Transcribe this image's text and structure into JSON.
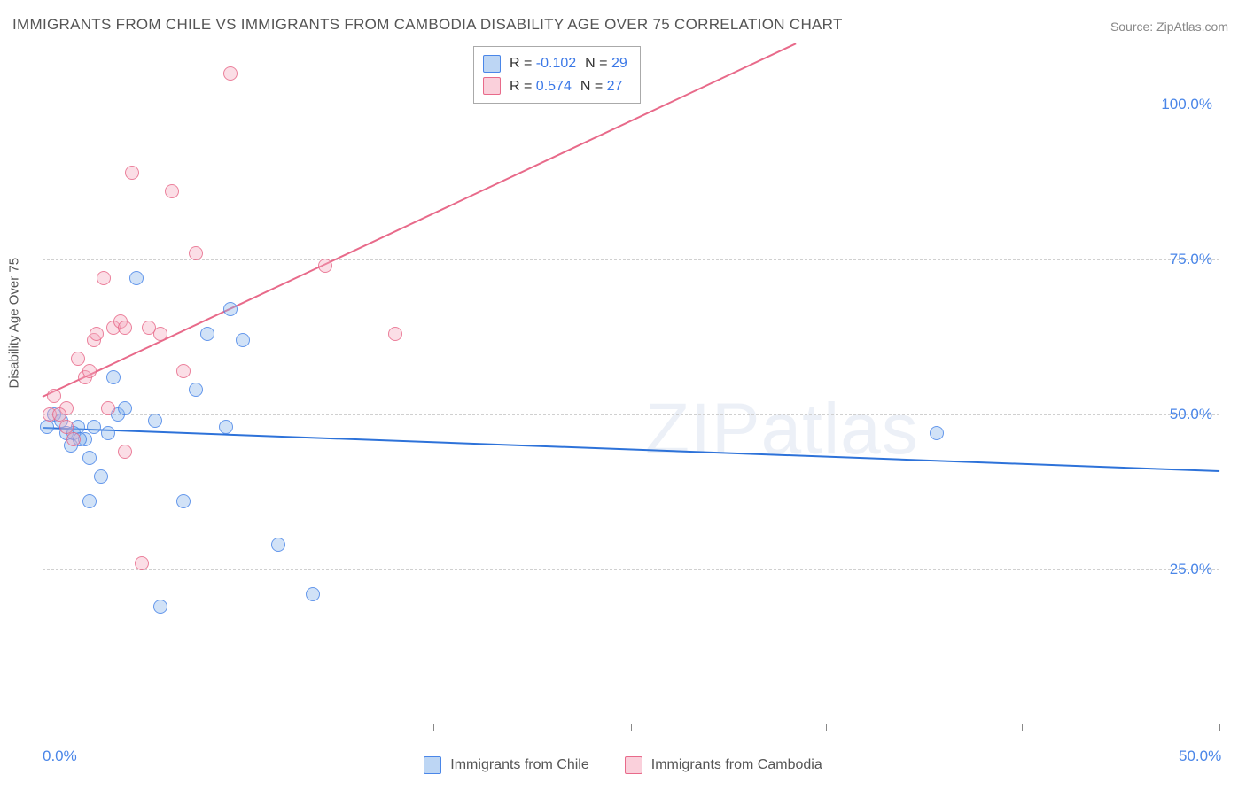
{
  "title": "IMMIGRANTS FROM CHILE VS IMMIGRANTS FROM CAMBODIA DISABILITY AGE OVER 75 CORRELATION CHART",
  "source": "Source: ZipAtlas.com",
  "ylabel": "Disability Age Over 75",
  "watermark": {
    "bold": "ZIP",
    "light": "atlas"
  },
  "legend_top": {
    "rows": [
      {
        "swatch": "blue",
        "r_label": "R = ",
        "r_value": "-0.102",
        "n_label": "N = ",
        "n_value": "29"
      },
      {
        "swatch": "pink",
        "r_label": "R = ",
        "r_value": "0.574",
        "n_label": "N = ",
        "n_value": "27"
      }
    ]
  },
  "legend_bottom": {
    "items": [
      {
        "swatch": "blue",
        "label": "Immigrants from Chile"
      },
      {
        "swatch": "pink",
        "label": "Immigrants from Cambodia"
      }
    ]
  },
  "chart": {
    "type": "scatter",
    "xlim": [
      0,
      50
    ],
    "ylim": [
      0,
      110
    ],
    "y_gridlines": [
      25,
      50,
      75,
      100
    ],
    "ytick_labels": [
      "25.0%",
      "50.0%",
      "75.0%",
      "100.0%"
    ],
    "xtick_positions": [
      0,
      8.3,
      16.6,
      25,
      33.3,
      41.6,
      50
    ],
    "xtick_labels": {
      "0": "0.0%",
      "50": "50.0%"
    },
    "background_color": "#ffffff",
    "grid_color": "#d0d0d0",
    "axis_color": "#888888",
    "series": [
      {
        "name": "Immigrants from Chile",
        "color_fill": "rgba(135,180,235,0.45)",
        "color_stroke": "#4a86e8",
        "marker_size": 16,
        "regression": {
          "y_at_x0": 48,
          "y_at_xmax": 41,
          "color": "#2d72d9",
          "width": 2
        },
        "points": [
          {
            "x": 0.2,
            "y": 48
          },
          {
            "x": 0.5,
            "y": 50
          },
          {
            "x": 1.0,
            "y": 47
          },
          {
            "x": 1.2,
            "y": 45
          },
          {
            "x": 1.5,
            "y": 48
          },
          {
            "x": 1.8,
            "y": 46
          },
          {
            "x": 2.0,
            "y": 36
          },
          {
            "x": 2.2,
            "y": 48
          },
          {
            "x": 2.5,
            "y": 40
          },
          {
            "x": 2.8,
            "y": 47
          },
          {
            "x": 3.2,
            "y": 50
          },
          {
            "x": 3.5,
            "y": 51
          },
          {
            "x": 4.0,
            "y": 72
          },
          {
            "x": 4.8,
            "y": 49
          },
          {
            "x": 5.0,
            "y": 19
          },
          {
            "x": 6.0,
            "y": 36
          },
          {
            "x": 6.5,
            "y": 54
          },
          {
            "x": 7.0,
            "y": 63
          },
          {
            "x": 7.8,
            "y": 48
          },
          {
            "x": 8.0,
            "y": 67
          },
          {
            "x": 8.5,
            "y": 62
          },
          {
            "x": 10.0,
            "y": 29
          },
          {
            "x": 11.5,
            "y": 21
          },
          {
            "x": 38.0,
            "y": 47
          },
          {
            "x": 3.0,
            "y": 56
          },
          {
            "x": 2.0,
            "y": 43
          },
          {
            "x": 1.3,
            "y": 47
          },
          {
            "x": 0.8,
            "y": 49
          },
          {
            "x": 1.6,
            "y": 46
          }
        ]
      },
      {
        "name": "Immigrants from Cambodia",
        "color_fill": "rgba(245,170,190,0.45)",
        "color_stroke": "#e86a8a",
        "marker_size": 16,
        "regression": {
          "y_at_x0": 53,
          "y_at_xmax": 142,
          "color": "#e86a8a",
          "width": 2,
          "clip": true
        },
        "points": [
          {
            "x": 0.3,
            "y": 50
          },
          {
            "x": 0.5,
            "y": 53
          },
          {
            "x": 1.0,
            "y": 51
          },
          {
            "x": 1.3,
            "y": 46
          },
          {
            "x": 1.5,
            "y": 59
          },
          {
            "x": 1.8,
            "y": 56
          },
          {
            "x": 2.0,
            "y": 57
          },
          {
            "x": 2.2,
            "y": 62
          },
          {
            "x": 2.6,
            "y": 72
          },
          {
            "x": 3.0,
            "y": 64
          },
          {
            "x": 3.3,
            "y": 65
          },
          {
            "x": 3.5,
            "y": 44
          },
          {
            "x": 3.8,
            "y": 89
          },
          {
            "x": 3.5,
            "y": 64
          },
          {
            "x": 4.2,
            "y": 26
          },
          {
            "x": 5.0,
            "y": 63
          },
          {
            "x": 5.5,
            "y": 86
          },
          {
            "x": 6.0,
            "y": 57
          },
          {
            "x": 6.5,
            "y": 76
          },
          {
            "x": 8.0,
            "y": 105
          },
          {
            "x": 12.0,
            "y": 74
          },
          {
            "x": 15.0,
            "y": 63
          },
          {
            "x": 1.0,
            "y": 48
          },
          {
            "x": 0.7,
            "y": 50
          },
          {
            "x": 2.3,
            "y": 63
          },
          {
            "x": 2.8,
            "y": 51
          },
          {
            "x": 4.5,
            "y": 64
          }
        ]
      }
    ]
  }
}
